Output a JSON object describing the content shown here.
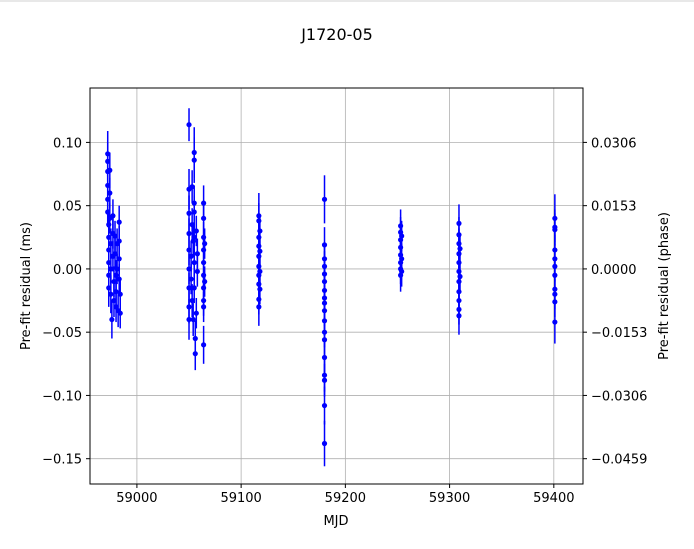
{
  "chart_data": {
    "type": "scatter",
    "title": "J1720-05",
    "xlabel": "MJD",
    "ylabel": "Pre-fit residual (ms)",
    "ylabel_right": "Pre-fit residual (phase)",
    "xlim": [
      58955,
      59428
    ],
    "ylim": [
      -0.17,
      0.143
    ],
    "x_ticks": [
      59000,
      59100,
      59200,
      59300,
      59400
    ],
    "x_tick_labels": [
      "59000",
      "59100",
      "59200",
      "59300",
      "59400"
    ],
    "y_ticks": [
      0.1,
      0.05,
      0.0,
      -0.05,
      -0.1,
      -0.15
    ],
    "y_tick_labels": [
      "0.10",
      "0.05",
      "0.00",
      "−0.05",
      "−0.10",
      "−0.15"
    ],
    "y_right_ticks": [
      0.1,
      0.05,
      0.0,
      -0.05,
      -0.1,
      -0.15
    ],
    "y_right_tick_labels": [
      "0.0306",
      "0.0153",
      "0.0000",
      "−0.0153",
      "−0.0306",
      "−0.0459"
    ],
    "grid": true,
    "color": "#0000ff",
    "series": [
      {
        "points": [
          {
            "x": 58972,
            "y": 0.091,
            "err": 0.018
          },
          {
            "x": 58972,
            "y": 0.085,
            "err": 0.015
          },
          {
            "x": 58972,
            "y": 0.077,
            "err": 0.013
          },
          {
            "x": 58972,
            "y": 0.066,
            "err": 0.012
          },
          {
            "x": 58972,
            "y": 0.055,
            "err": 0.012
          },
          {
            "x": 58972,
            "y": 0.045,
            "err": 0.012
          },
          {
            "x": 58973,
            "y": 0.035,
            "err": 0.012
          },
          {
            "x": 58973,
            "y": 0.025,
            "err": 0.012
          },
          {
            "x": 58973,
            "y": 0.015,
            "err": 0.012
          },
          {
            "x": 58973,
            "y": 0.005,
            "err": 0.012
          },
          {
            "x": 58973,
            "y": -0.005,
            "err": 0.012
          },
          {
            "x": 58973,
            "y": -0.015,
            "err": 0.015
          },
          {
            "x": 58974,
            "y": 0.078,
            "err": 0.014
          },
          {
            "x": 58974,
            "y": 0.06,
            "err": 0.012
          },
          {
            "x": 58974,
            "y": 0.04,
            "err": 0.012
          },
          {
            "x": 58975,
            "y": 0.02,
            "err": 0.012
          },
          {
            "x": 58975,
            "y": 0.0,
            "err": 0.012
          },
          {
            "x": 58975,
            "y": -0.02,
            "err": 0.015
          },
          {
            "x": 58976,
            "y": -0.04,
            "err": 0.015
          },
          {
            "x": 58977,
            "y": 0.042,
            "err": 0.013
          },
          {
            "x": 58977,
            "y": 0.028,
            "err": 0.012
          },
          {
            "x": 58977,
            "y": 0.01,
            "err": 0.012
          },
          {
            "x": 58978,
            "y": -0.01,
            "err": 0.012
          },
          {
            "x": 58978,
            "y": -0.025,
            "err": 0.013
          },
          {
            "x": 58979,
            "y": 0.026,
            "err": 0.012
          },
          {
            "x": 58979,
            "y": 0.012,
            "err": 0.012
          },
          {
            "x": 58980,
            "y": -0.005,
            "err": 0.012
          },
          {
            "x": 58980,
            "y": -0.018,
            "err": 0.012
          },
          {
            "x": 58980,
            "y": -0.03,
            "err": 0.012
          },
          {
            "x": 58981,
            "y": 0.02,
            "err": 0.012
          },
          {
            "x": 58981,
            "y": 0.0,
            "err": 0.012
          },
          {
            "x": 58982,
            "y": -0.033,
            "err": 0.013
          },
          {
            "x": 58983,
            "y": 0.037,
            "err": 0.013
          },
          {
            "x": 58983,
            "y": 0.022,
            "err": 0.012
          },
          {
            "x": 58983,
            "y": 0.008,
            "err": 0.012
          },
          {
            "x": 58983,
            "y": -0.008,
            "err": 0.012
          },
          {
            "x": 58984,
            "y": -0.02,
            "err": 0.012
          },
          {
            "x": 58984,
            "y": -0.035,
            "err": 0.012
          },
          {
            "x": 59050,
            "y": 0.114,
            "err": 0.013
          },
          {
            "x": 59050,
            "y": 0.063,
            "err": 0.016
          },
          {
            "x": 59050,
            "y": 0.044,
            "err": 0.014
          },
          {
            "x": 59050,
            "y": 0.028,
            "err": 0.012
          },
          {
            "x": 59050,
            "y": 0.015,
            "err": 0.012
          },
          {
            "x": 59050,
            "y": 0.0,
            "err": 0.012
          },
          {
            "x": 59050,
            "y": -0.015,
            "err": 0.012
          },
          {
            "x": 59050,
            "y": -0.03,
            "err": 0.013
          },
          {
            "x": 59050,
            "y": -0.04,
            "err": 0.016
          },
          {
            "x": 59052,
            "y": 0.01,
            "err": 0.012
          },
          {
            "x": 59052,
            "y": -0.008,
            "err": 0.012
          },
          {
            "x": 59053,
            "y": 0.065,
            "err": 0.013
          },
          {
            "x": 59053,
            "y": 0.035,
            "err": 0.013
          },
          {
            "x": 59053,
            "y": -0.025,
            "err": 0.013
          },
          {
            "x": 59054,
            "y": 0.022,
            "err": 0.012
          },
          {
            "x": 59054,
            "y": -0.04,
            "err": 0.013
          },
          {
            "x": 59055,
            "y": 0.092,
            "err": 0.02
          },
          {
            "x": 59055,
            "y": 0.086,
            "err": 0.018
          },
          {
            "x": 59055,
            "y": 0.052,
            "err": 0.014
          },
          {
            "x": 59055,
            "y": 0.045,
            "err": 0.013
          },
          {
            "x": 59055,
            "y": 0.025,
            "err": 0.012
          },
          {
            "x": 59055,
            "y": 0.005,
            "err": 0.012
          },
          {
            "x": 59055,
            "y": -0.015,
            "err": 0.012
          },
          {
            "x": 59056,
            "y": -0.055,
            "err": 0.014
          },
          {
            "x": 59056,
            "y": -0.067,
            "err": 0.013
          },
          {
            "x": 59057,
            "y": 0.03,
            "err": 0.012
          },
          {
            "x": 59057,
            "y": -0.035,
            "err": 0.012
          },
          {
            "x": 59058,
            "y": 0.012,
            "err": 0.012
          },
          {
            "x": 59058,
            "y": -0.002,
            "err": 0.012
          },
          {
            "x": 59064,
            "y": 0.052,
            "err": 0.014
          },
          {
            "x": 59064,
            "y": 0.04,
            "err": 0.014
          },
          {
            "x": 59064,
            "y": 0.025,
            "err": 0.012
          },
          {
            "x": 59064,
            "y": 0.015,
            "err": 0.012
          },
          {
            "x": 59064,
            "y": 0.005,
            "err": 0.012
          },
          {
            "x": 59064,
            "y": -0.005,
            "err": 0.012
          },
          {
            "x": 59064,
            "y": -0.015,
            "err": 0.012
          },
          {
            "x": 59064,
            "y": -0.025,
            "err": 0.012
          },
          {
            "x": 59064,
            "y": -0.03,
            "err": 0.012
          },
          {
            "x": 59064,
            "y": -0.06,
            "err": 0.015
          },
          {
            "x": 59065,
            "y": 0.02,
            "err": 0.012
          },
          {
            "x": 59065,
            "y": -0.01,
            "err": 0.012
          },
          {
            "x": 59117,
            "y": 0.042,
            "err": 0.018
          },
          {
            "x": 59117,
            "y": 0.038,
            "err": 0.014
          },
          {
            "x": 59117,
            "y": 0.025,
            "err": 0.012
          },
          {
            "x": 59117,
            "y": 0.018,
            "err": 0.012
          },
          {
            "x": 59117,
            "y": 0.01,
            "err": 0.012
          },
          {
            "x": 59117,
            "y": 0.002,
            "err": 0.012
          },
          {
            "x": 59117,
            "y": -0.005,
            "err": 0.012
          },
          {
            "x": 59117,
            "y": -0.012,
            "err": 0.012
          },
          {
            "x": 59117,
            "y": -0.024,
            "err": 0.012
          },
          {
            "x": 59117,
            "y": -0.03,
            "err": 0.015
          },
          {
            "x": 59118,
            "y": 0.03,
            "err": 0.012
          },
          {
            "x": 59118,
            "y": 0.014,
            "err": 0.012
          },
          {
            "x": 59118,
            "y": -0.002,
            "err": 0.012
          },
          {
            "x": 59118,
            "y": -0.016,
            "err": 0.012
          },
          {
            "x": 59180,
            "y": 0.055,
            "err": 0.019
          },
          {
            "x": 59180,
            "y": 0.019,
            "err": 0.014
          },
          {
            "x": 59180,
            "y": 0.008,
            "err": 0.012
          },
          {
            "x": 59180,
            "y": 0.002,
            "err": 0.012
          },
          {
            "x": 59180,
            "y": -0.004,
            "err": 0.012
          },
          {
            "x": 59180,
            "y": -0.01,
            "err": 0.012
          },
          {
            "x": 59180,
            "y": -0.017,
            "err": 0.012
          },
          {
            "x": 59180,
            "y": -0.023,
            "err": 0.012
          },
          {
            "x": 59180,
            "y": -0.027,
            "err": 0.012
          },
          {
            "x": 59180,
            "y": -0.033,
            "err": 0.012
          },
          {
            "x": 59180,
            "y": -0.041,
            "err": 0.012
          },
          {
            "x": 59180,
            "y": -0.05,
            "err": 0.012
          },
          {
            "x": 59180,
            "y": -0.056,
            "err": 0.012
          },
          {
            "x": 59180,
            "y": -0.07,
            "err": 0.013
          },
          {
            "x": 59180,
            "y": -0.084,
            "err": 0.013
          },
          {
            "x": 59180,
            "y": -0.088,
            "err": 0.013
          },
          {
            "x": 59180,
            "y": -0.108,
            "err": 0.015
          },
          {
            "x": 59180,
            "y": -0.138,
            "err": 0.018
          },
          {
            "x": 59253,
            "y": 0.034,
            "err": 0.013
          },
          {
            "x": 59253,
            "y": 0.029,
            "err": 0.012
          },
          {
            "x": 59253,
            "y": 0.023,
            "err": 0.012
          },
          {
            "x": 59253,
            "y": 0.017,
            "err": 0.012
          },
          {
            "x": 59253,
            "y": 0.011,
            "err": 0.012
          },
          {
            "x": 59253,
            "y": 0.005,
            "err": 0.012
          },
          {
            "x": 59253,
            "y": 0.0,
            "err": 0.012
          },
          {
            "x": 59253,
            "y": -0.005,
            "err": 0.013
          },
          {
            "x": 59254,
            "y": 0.026,
            "err": 0.012
          },
          {
            "x": 59254,
            "y": 0.008,
            "err": 0.012
          },
          {
            "x": 59254,
            "y": -0.002,
            "err": 0.012
          },
          {
            "x": 59309,
            "y": 0.036,
            "err": 0.015
          },
          {
            "x": 59309,
            "y": 0.027,
            "err": 0.014
          },
          {
            "x": 59309,
            "y": 0.02,
            "err": 0.012
          },
          {
            "x": 59309,
            "y": 0.012,
            "err": 0.012
          },
          {
            "x": 59309,
            "y": 0.005,
            "err": 0.012
          },
          {
            "x": 59309,
            "y": -0.002,
            "err": 0.012
          },
          {
            "x": 59309,
            "y": -0.01,
            "err": 0.012
          },
          {
            "x": 59309,
            "y": -0.018,
            "err": 0.012
          },
          {
            "x": 59309,
            "y": -0.025,
            "err": 0.012
          },
          {
            "x": 59309,
            "y": -0.032,
            "err": 0.012
          },
          {
            "x": 59309,
            "y": -0.037,
            "err": 0.015
          },
          {
            "x": 59310,
            "y": 0.016,
            "err": 0.012
          },
          {
            "x": 59310,
            "y": -0.006,
            "err": 0.012
          },
          {
            "x": 59401,
            "y": 0.04,
            "err": 0.019
          },
          {
            "x": 59401,
            "y": 0.033,
            "err": 0.014
          },
          {
            "x": 59401,
            "y": 0.031,
            "err": 0.013
          },
          {
            "x": 59401,
            "y": 0.015,
            "err": 0.012
          },
          {
            "x": 59401,
            "y": 0.008,
            "err": 0.012
          },
          {
            "x": 59401,
            "y": 0.002,
            "err": 0.012
          },
          {
            "x": 59401,
            "y": -0.005,
            "err": 0.012
          },
          {
            "x": 59401,
            "y": -0.016,
            "err": 0.012
          },
          {
            "x": 59401,
            "y": -0.02,
            "err": 0.012
          },
          {
            "x": 59401,
            "y": -0.026,
            "err": 0.012
          },
          {
            "x": 59401,
            "y": -0.042,
            "err": 0.017
          }
        ]
      }
    ]
  }
}
